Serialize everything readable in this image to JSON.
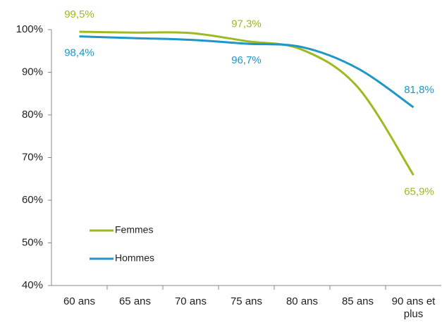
{
  "chart_data": {
    "type": "line",
    "categories": [
      "60 ans",
      "65 ans",
      "70 ans",
      "75 ans",
      "80 ans",
      "85 ans",
      "90 ans et plus"
    ],
    "series": [
      {
        "name": "Femmes",
        "color": "#9bbb1e",
        "values": [
          99.5,
          99.3,
          99.2,
          97.3,
          95.3,
          86.5,
          65.9
        ],
        "value_labels": [
          "99,5%",
          null,
          null,
          "97,3%",
          null,
          null,
          "65,9%"
        ]
      },
      {
        "name": "Hommes",
        "color": "#1e96c8",
        "values": [
          98.4,
          98.0,
          97.6,
          96.7,
          95.9,
          90.9,
          81.8
        ],
        "value_labels": [
          "98,4%",
          null,
          null,
          "96,7%",
          null,
          null,
          "81,8%"
        ]
      }
    ],
    "ylim": [
      40,
      100
    ],
    "yticks": [
      {
        "value": 40,
        "label": "40%"
      },
      {
        "value": 50,
        "label": "50%"
      },
      {
        "value": 60,
        "label": "60%"
      },
      {
        "value": 70,
        "label": "70%"
      },
      {
        "value": 80,
        "label": "80%"
      },
      {
        "value": 90,
        "label": "90%"
      },
      {
        "value": 100,
        "label": "100%"
      }
    ],
    "legend": "lower left"
  }
}
